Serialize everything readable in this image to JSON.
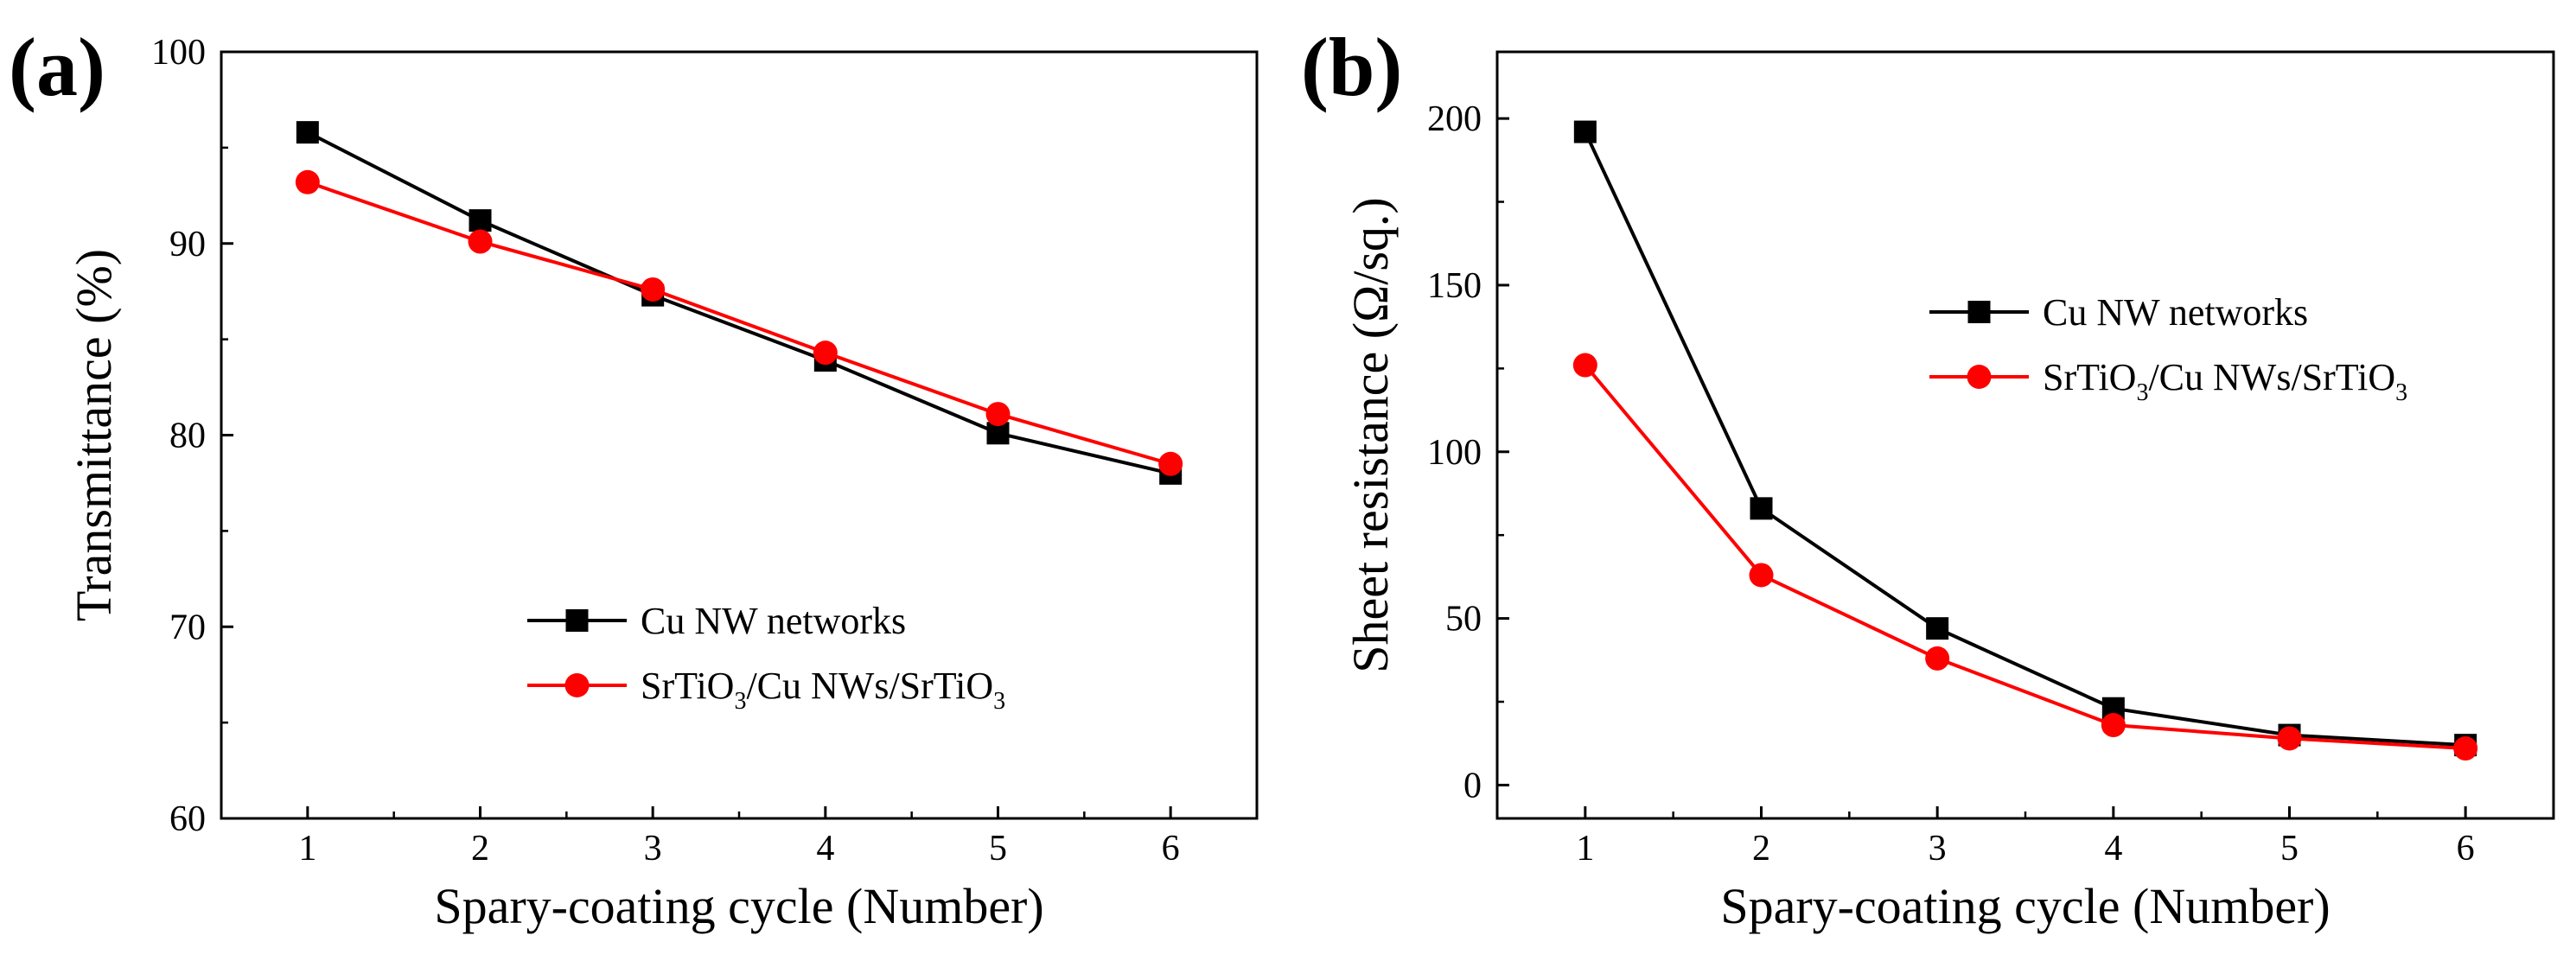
{
  "chart_data": [
    {
      "panel_label": "(a)",
      "type": "line",
      "xlabel": "Spary-coating cycle (Number)",
      "ylabel": "Transmittance (%)",
      "x": [
        1,
        2,
        3,
        4,
        5,
        6
      ],
      "xlim": [
        0.5,
        6.5
      ],
      "ylim": [
        60,
        100
      ],
      "xticks": [
        "1",
        "2",
        "3",
        "4",
        "5",
        "6"
      ],
      "yticks": [
        "60",
        "70",
        "80",
        "90",
        "100"
      ],
      "grid": false,
      "legend_position": "lower-center",
      "series": [
        {
          "name": "Cu NW networks",
          "color": "#000000",
          "marker": "square",
          "values": [
            95.8,
            91.2,
            87.3,
            83.9,
            80.1,
            78.0
          ]
        },
        {
          "name_base": "SrTiO",
          "name_sub": "3",
          "name_rest": "/Cu NWs/SrTiO",
          "name_sub2": "3",
          "color": "#ff0000",
          "marker": "circle",
          "values": [
            93.2,
            90.1,
            87.6,
            84.3,
            81.1,
            78.5
          ]
        }
      ]
    },
    {
      "panel_label": "(b)",
      "type": "line",
      "xlabel": "Spary-coating cycle (Number)",
      "ylabel": "Sheet resistance (Ω/sq.)",
      "x": [
        1,
        2,
        3,
        4,
        5,
        6
      ],
      "xlim": [
        0.5,
        6.5
      ],
      "ylim": [
        -10,
        220
      ],
      "xticks": [
        "1",
        "2",
        "3",
        "4",
        "5",
        "6"
      ],
      "yticks": [
        "0",
        "50",
        "100",
        "150",
        "200"
      ],
      "grid": false,
      "legend_position": "upper-right",
      "series": [
        {
          "name": "Cu NW networks",
          "color": "#000000",
          "marker": "square",
          "values": [
            196,
            83,
            47,
            23,
            15,
            12
          ]
        },
        {
          "name_base": "SrTiO",
          "name_sub": "3",
          "name_rest": "/Cu NWs/SrTiO",
          "name_sub2": "3",
          "color": "#ff0000",
          "marker": "circle",
          "values": [
            126,
            63,
            38,
            18,
            14,
            11
          ]
        }
      ]
    }
  ]
}
